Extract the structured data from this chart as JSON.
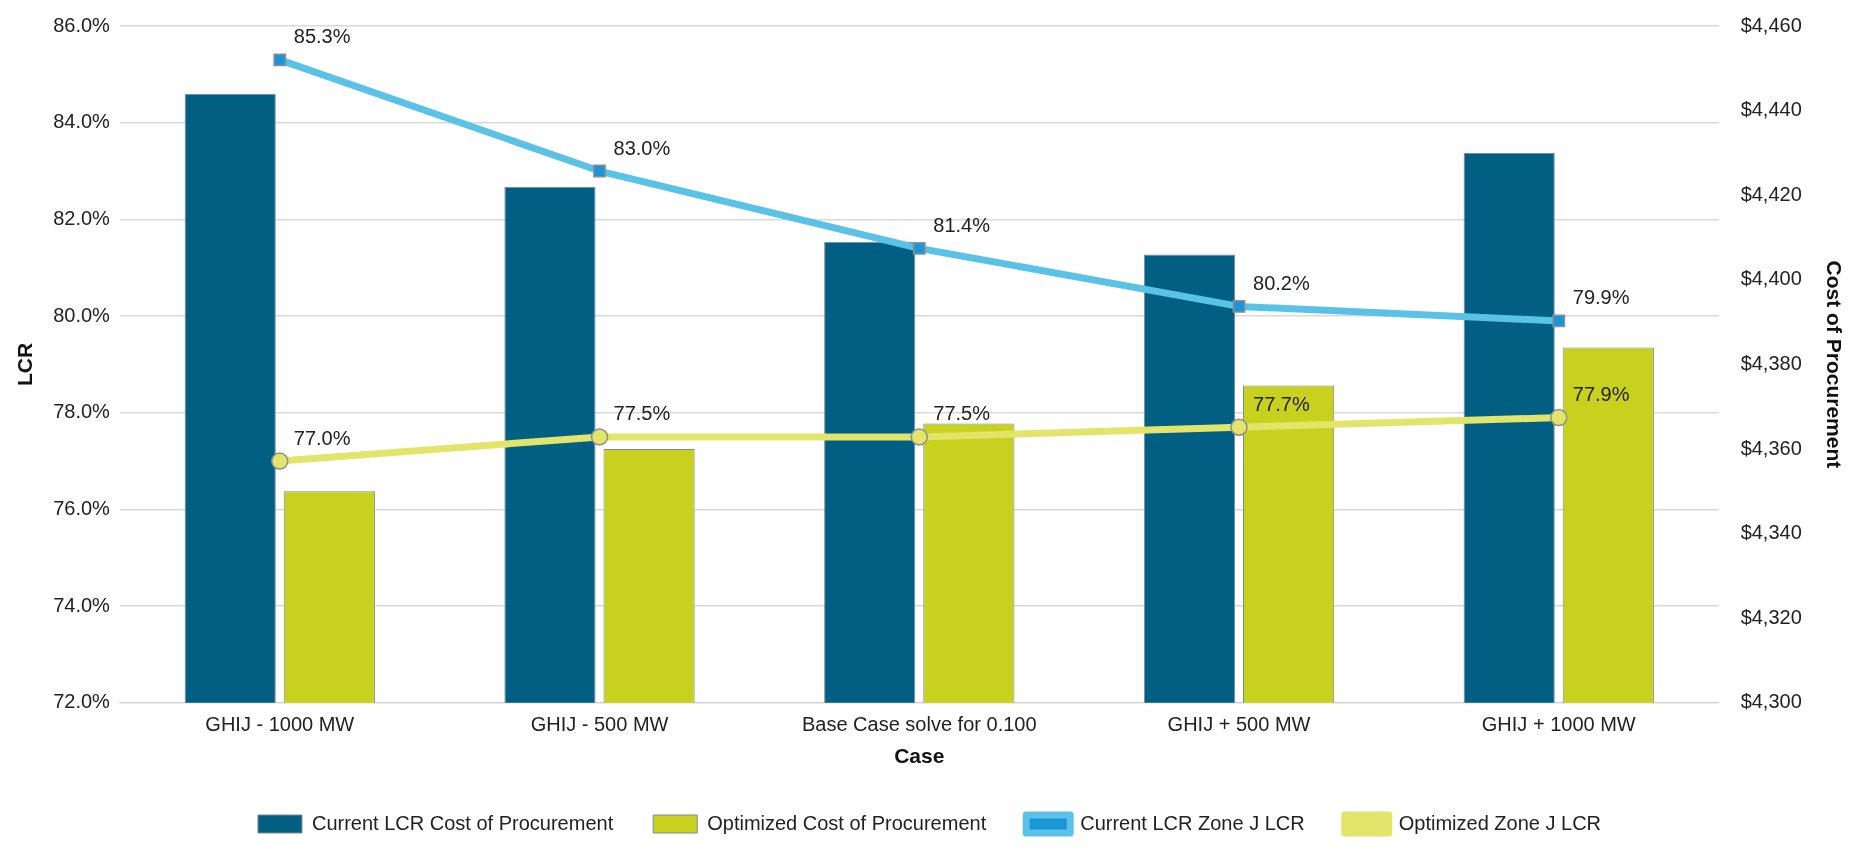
{
  "chart_data": {
    "type": "bar",
    "xlabel": "Case",
    "ylabel": "LCR",
    "y2label": "Cost of Procurement",
    "categories": [
      "GHIJ - 1000 MW",
      "GHIJ - 500 MW",
      "Base Case solve for 0.100",
      "GHIJ + 500 MW",
      "GHIJ + 1000 MW"
    ],
    "series": [
      {
        "name": "Current LCR Cost of Procurement",
        "axis": "y2",
        "color": "#005f83",
        "values": [
          4444,
          4422,
          4409,
          4406,
          4430
        ]
      },
      {
        "name": "Optimized Cost of Procurement",
        "axis": "y2",
        "color": "#c9d11f",
        "values": [
          4350,
          4360,
          4366,
          4375,
          4384
        ]
      },
      {
        "name": "Current LCR Zone J LCR",
        "type": "line",
        "color": "#5bc2e7",
        "marker": "square",
        "values": [
          85.3,
          83.0,
          81.4,
          80.2,
          79.9
        ],
        "value_labels": [
          "85.3%",
          "83.0%",
          "81.4%",
          "80.2%",
          "79.9%"
        ]
      },
      {
        "name": "Optimized Zone J LCR",
        "type": "line",
        "color": "#e3e56a",
        "marker": "circle",
        "values": [
          77.0,
          77.5,
          77.5,
          77.7,
          77.9
        ],
        "value_labels": [
          "77.0%",
          "77.5%",
          "77.5%",
          "77.7%",
          "77.9%"
        ]
      }
    ],
    "ylim": [
      72,
      86
    ],
    "yticks": [
      {
        "value": 72,
        "label": "72.0%"
      },
      {
        "value": 74,
        "label": "74.0%"
      },
      {
        "value": 76,
        "label": "76.0%"
      },
      {
        "value": 78,
        "label": "78.0%"
      },
      {
        "value": 80,
        "label": "80.0%"
      },
      {
        "value": 82,
        "label": "82.0%"
      },
      {
        "value": 84,
        "label": "84.0%"
      },
      {
        "value": 86,
        "label": "86.0%"
      }
    ],
    "y2lim": [
      4300,
      4460
    ],
    "y2ticks": [
      {
        "value": 4300,
        "label": "$4,300"
      },
      {
        "value": 4320,
        "label": "$4,320"
      },
      {
        "value": 4340,
        "label": "$4,340"
      },
      {
        "value": 4360,
        "label": "$4,360"
      },
      {
        "value": 4380,
        "label": "$4,380"
      },
      {
        "value": 4400,
        "label": "$4,400"
      },
      {
        "value": 4420,
        "label": "$4,420"
      },
      {
        "value": 4440,
        "label": "$4,440"
      },
      {
        "value": 4460,
        "label": "$4,460"
      }
    ],
    "grid": "y",
    "legend": "bottom"
  }
}
